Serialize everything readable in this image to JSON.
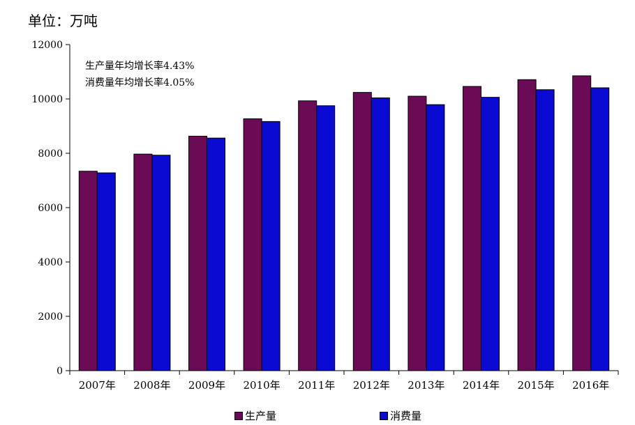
{
  "unit_label": "单位：万吨",
  "annotations": [
    "生产量年均增长率4.43%",
    "消费量年均增长率4.05%"
  ],
  "colors": {
    "production": "#6b0a55",
    "consumption": "#0a0ad2",
    "axis": "#000000"
  },
  "chart_data": {
    "type": "bar",
    "title": "",
    "xlabel": "",
    "ylabel": "",
    "ylim": [
      0,
      12000
    ],
    "yticks": [
      "0",
      "2000",
      "4000",
      "6000",
      "8000",
      "10000",
      "12000"
    ],
    "grid": false,
    "legend_position": "bottom",
    "categories": [
      "2007年",
      "2008年",
      "2009年",
      "2010年",
      "2011年",
      "2012年",
      "2013年",
      "2014年",
      "2015年",
      "2016年"
    ],
    "series": [
      {
        "name": "生产量",
        "values": [
          7340,
          7970,
          8630,
          9270,
          9930,
          10240,
          10100,
          10460,
          10710,
          10850
        ]
      },
      {
        "name": "消费量",
        "values": [
          7280,
          7930,
          8560,
          9170,
          9750,
          10040,
          9790,
          10060,
          10340,
          10410
        ]
      }
    ]
  }
}
